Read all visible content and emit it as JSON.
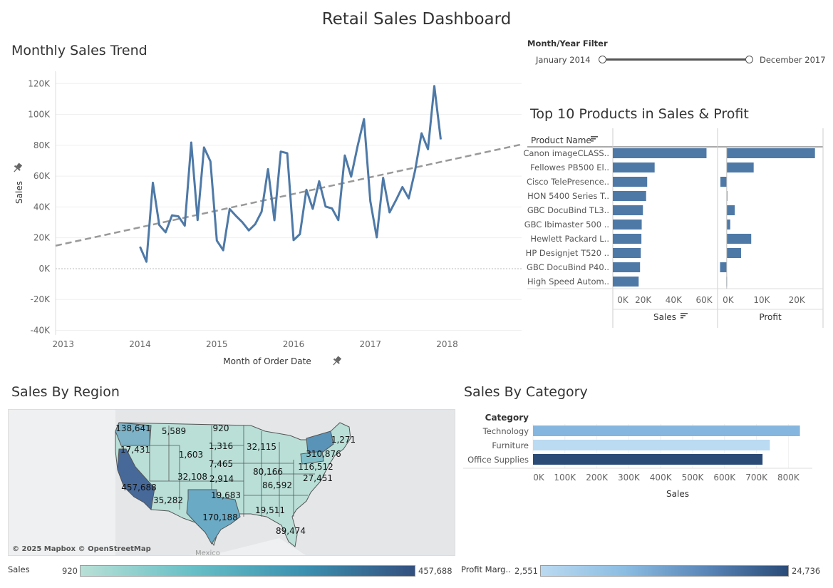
{
  "dashboard": {
    "title": "Retail Sales Dashboard"
  },
  "filter": {
    "label": "Month/Year Filter",
    "start": "January 2014",
    "end": "December 2017",
    "range_fraction": [
      0,
      1
    ]
  },
  "trend": {
    "title": "Monthly Sales Trend",
    "pin_icon": "pin-icon"
  },
  "top10": {
    "title": "Top 10 Products in Sales & Profit",
    "header": "Product Name",
    "sort_icon": "sort-icon"
  },
  "region": {
    "title": "Sales By Region",
    "attribution": "© 2025 Mapbox © OpenStreetMap",
    "place_label": "Mexico",
    "legend_label": "Sales",
    "legend_min": "920",
    "legend_max": "457,688",
    "legend_colors": [
      "#b8e0d6",
      "#68bfc6",
      "#3c91b0",
      "#34507f"
    ]
  },
  "category": {
    "title": "Sales By Category",
    "legend_label": "Profit Marg..",
    "legend_min": "2,551",
    "legend_max": "24,736",
    "legend_colors": [
      "#bad9f0",
      "#8cbde2",
      "#5a86b8",
      "#2a4b77"
    ]
  },
  "chart_data": [
    {
      "type": "line",
      "title": "Monthly Sales Trend",
      "xlabel": "Month of Order Date",
      "ylabel": "Sales",
      "x_ticks": [
        "2013",
        "2014",
        "2015",
        "2016",
        "2017",
        "2018"
      ],
      "y_ticks": [
        "120K",
        "100K",
        "80K",
        "60K",
        "40K",
        "20K",
        "0K",
        "-20K",
        "-40K"
      ],
      "ylim": [
        -43000,
        128000
      ],
      "xlim": [
        2012.9,
        2018.97
      ],
      "color": "#4e79a7",
      "trendline_color": "#999999",
      "trend": {
        "x": [
          2012.9,
          2018.97
        ],
        "y": [
          14900,
          80600
        ]
      },
      "series": [
        {
          "x": [
            2014.0,
            2014.083,
            2014.167,
            2014.25,
            2014.333,
            2014.417,
            2014.5,
            2014.583,
            2014.667,
            2014.75,
            2014.833,
            2014.917,
            2015.0,
            2015.083,
            2015.167,
            2015.25,
            2015.333,
            2015.417,
            2015.5,
            2015.583,
            2015.667,
            2015.75,
            2015.833,
            2015.917,
            2016.0,
            2016.083,
            2016.167,
            2016.25,
            2016.333,
            2016.417,
            2016.5,
            2016.583,
            2016.667,
            2016.75,
            2016.833,
            2016.917,
            2017.0,
            2017.083,
            2017.167,
            2017.25,
            2017.333,
            2017.417,
            2017.5,
            2017.583,
            2017.667,
            2017.75,
            2017.833,
            2017.917
          ],
          "y": [
            14200,
            4500,
            55700,
            28300,
            23600,
            34600,
            33900,
            27900,
            81800,
            31500,
            78600,
            69600,
            18200,
            11950,
            38700,
            34200,
            30100,
            24800,
            28800,
            36900,
            64600,
            31400,
            75900,
            74900,
            18500,
            22400,
            51200,
            38800,
            56700,
            40300,
            39100,
            31500,
            73400,
            59700,
            79400,
            96999,
            43800,
            20300,
            58900,
            36500,
            44300,
            52900,
            45600,
            63800,
            87800,
            77500,
            118400,
            83800
          ]
        }
      ]
    },
    {
      "type": "bar",
      "title": "Top 10 Products in Sales & Profit",
      "categories": [
        "Canon imageCLASS..",
        "Fellowes PB500 El..",
        "Cisco TelePresence..",
        "HON 5400 Series T..",
        "GBC DocuBind TL3..",
        "GBC Ibimaster 500 ..",
        "Hewlett Packard L..",
        "HP Designjet T520 ..",
        "GBC DocuBind P40..",
        "High Speed Autom.."
      ],
      "series": [
        {
          "name": "Sales",
          "values": [
            61600,
            27500,
            22600,
            21900,
            19800,
            19000,
            18800,
            18400,
            17900,
            17000
          ],
          "ticks": [
            "0K",
            "20K",
            "40K",
            "60K"
          ],
          "xlim": [
            0,
            67000
          ]
        },
        {
          "name": "Profit",
          "values": [
            25200,
            7700,
            -1800,
            150,
            2300,
            1000,
            7000,
            4100,
            -1900,
            -100
          ],
          "ticks": [
            "0K",
            "10K",
            "20K"
          ],
          "xlim": [
            -2000,
            27500
          ]
        }
      ],
      "color": "#4e79a7"
    },
    {
      "type": "map",
      "title": "Sales By Region",
      "labels": [
        {
          "value": "138,641"
        },
        {
          "value": "5,589"
        },
        {
          "value": "920"
        },
        {
          "value": "1,271"
        },
        {
          "value": "17,431"
        },
        {
          "value": "1,316"
        },
        {
          "value": "32,115"
        },
        {
          "value": "1,603"
        },
        {
          "value": "310,876"
        },
        {
          "value": "7,465"
        },
        {
          "value": "116,512"
        },
        {
          "value": "80,166"
        },
        {
          "value": "32,108"
        },
        {
          "value": "2,914"
        },
        {
          "value": "86,592"
        },
        {
          "value": "27,451"
        },
        {
          "value": "457,688"
        },
        {
          "value": "19,683"
        },
        {
          "value": "35,282"
        },
        {
          "value": "170,188"
        },
        {
          "value": "19,511"
        },
        {
          "value": "89,474"
        }
      ]
    },
    {
      "type": "bar",
      "title": "Sales By Category",
      "legend_title": "Category",
      "categories": [
        "Technology",
        "Furniture",
        "Office Supplies"
      ],
      "values": [
        836200,
        742000,
        719000
      ],
      "colors": [
        "#85b6df",
        "#badbf2",
        "#2b4b77"
      ],
      "xlabel": "Sales",
      "x_ticks": [
        "0K",
        "100K",
        "200K",
        "300K",
        "400K",
        "500K",
        "600K",
        "700K",
        "800K"
      ],
      "xlim": [
        0,
        875000
      ]
    }
  ]
}
